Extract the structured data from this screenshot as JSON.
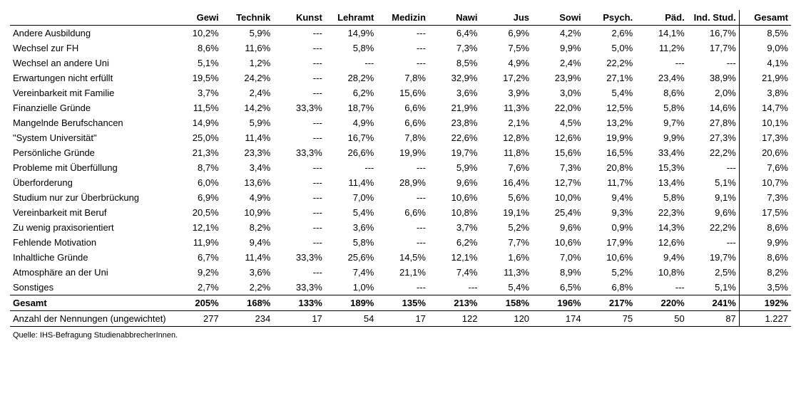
{
  "table": {
    "columns": [
      "Gewi",
      "Technik",
      "Kunst",
      "Lehramt",
      "Medizin",
      "Nawi",
      "Jus",
      "Sowi",
      "Psych.",
      "Päd.",
      "Ind. Stud.",
      "Gesamt"
    ],
    "totalColIndex": 11,
    "rowLabels": [
      "Andere Ausbildung",
      "Wechsel zur FH",
      "Wechsel an andere Uni",
      "Erwartungen nicht erfüllt",
      "Vereinbarkeit mit Familie",
      "Finanzielle Gründe",
      "Mangelnde Berufschancen",
      "\"System Universität\"",
      "Persönliche Gründe",
      "Probleme mit Überfüllung",
      "Überforderung",
      "Studium nur zur Überbrückung",
      "Vereinbarkeit mit Beruf",
      "Zu wenig praxisorientiert",
      "Fehlende Motivation",
      "Inhaltliche Gründe",
      "Atmosphäre an der Uni",
      "Sonstiges"
    ],
    "rows": [
      [
        "10,2%",
        "5,9%",
        "---",
        "14,9%",
        "---",
        "6,4%",
        "6,9%",
        "4,2%",
        "2,6%",
        "14,1%",
        "16,7%",
        "8,5%"
      ],
      [
        "8,6%",
        "11,6%",
        "---",
        "5,8%",
        "---",
        "7,3%",
        "7,5%",
        "9,9%",
        "5,0%",
        "11,2%",
        "17,7%",
        "9,0%"
      ],
      [
        "5,1%",
        "1,2%",
        "---",
        "---",
        "---",
        "8,5%",
        "4,9%",
        "2,4%",
        "22,2%",
        "---",
        "---",
        "4,1%"
      ],
      [
        "19,5%",
        "24,2%",
        "---",
        "28,2%",
        "7,8%",
        "32,9%",
        "17,2%",
        "23,9%",
        "27,1%",
        "23,4%",
        "38,9%",
        "21,9%"
      ],
      [
        "3,7%",
        "2,4%",
        "---",
        "6,2%",
        "15,6%",
        "3,6%",
        "3,9%",
        "3,0%",
        "5,4%",
        "8,6%",
        "2,0%",
        "3,8%"
      ],
      [
        "11,5%",
        "14,2%",
        "33,3%",
        "18,7%",
        "6,6%",
        "21,9%",
        "11,3%",
        "22,0%",
        "12,5%",
        "5,8%",
        "14,6%",
        "14,7%"
      ],
      [
        "14,9%",
        "5,9%",
        "---",
        "4,9%",
        "6,6%",
        "23,8%",
        "2,1%",
        "4,5%",
        "13,2%",
        "9,7%",
        "27,8%",
        "10,1%"
      ],
      [
        "25,0%",
        "11,4%",
        "---",
        "16,7%",
        "7,8%",
        "22,6%",
        "12,8%",
        "12,6%",
        "19,9%",
        "9,9%",
        "27,3%",
        "17,3%"
      ],
      [
        "21,3%",
        "23,3%",
        "33,3%",
        "26,6%",
        "19,9%",
        "19,7%",
        "11,8%",
        "15,6%",
        "16,5%",
        "33,4%",
        "22,2%",
        "20,6%"
      ],
      [
        "8,7%",
        "3,4%",
        "---",
        "---",
        "---",
        "5,9%",
        "7,6%",
        "7,3%",
        "20,8%",
        "15,3%",
        "---",
        "7,6%"
      ],
      [
        "6,0%",
        "13,6%",
        "---",
        "11,4%",
        "28,9%",
        "9,6%",
        "16,4%",
        "12,7%",
        "11,7%",
        "13,4%",
        "5,1%",
        "10,7%"
      ],
      [
        "6,9%",
        "4,9%",
        "---",
        "7,0%",
        "---",
        "10,6%",
        "5,6%",
        "10,0%",
        "9,4%",
        "5,8%",
        "9,1%",
        "7,3%"
      ],
      [
        "20,5%",
        "10,9%",
        "---",
        "5,4%",
        "6,6%",
        "10,8%",
        "19,1%",
        "25,4%",
        "9,3%",
        "22,3%",
        "9,6%",
        "17,5%"
      ],
      [
        "12,1%",
        "8,2%",
        "---",
        "3,6%",
        "---",
        "3,7%",
        "5,2%",
        "9,6%",
        "0,9%",
        "14,3%",
        "22,2%",
        "8,6%"
      ],
      [
        "11,9%",
        "9,4%",
        "---",
        "5,8%",
        "---",
        "6,2%",
        "7,7%",
        "10,6%",
        "17,9%",
        "12,6%",
        "---",
        "9,9%"
      ],
      [
        "6,7%",
        "11,4%",
        "33,3%",
        "25,6%",
        "14,5%",
        "12,1%",
        "1,6%",
        "7,0%",
        "10,6%",
        "9,4%",
        "19,7%",
        "8,6%"
      ],
      [
        "9,2%",
        "3,6%",
        "---",
        "7,4%",
        "21,1%",
        "7,4%",
        "11,3%",
        "8,9%",
        "5,2%",
        "10,8%",
        "2,5%",
        "8,2%"
      ],
      [
        "2,7%",
        "2,2%",
        "33,3%",
        "1,0%",
        "---",
        "---",
        "5,4%",
        "6,5%",
        "6,8%",
        "---",
        "5,1%",
        "3,5%"
      ]
    ],
    "totalRow": {
      "label": "Gesamt",
      "values": [
        "205%",
        "168%",
        "133%",
        "189%",
        "135%",
        "213%",
        "158%",
        "196%",
        "217%",
        "220%",
        "241%",
        "192%"
      ]
    },
    "countRow": {
      "label": "Anzahl der Nennungen (ungewichtet)",
      "values": [
        "277",
        "234",
        "17",
        "54",
        "17",
        "122",
        "120",
        "174",
        "75",
        "50",
        "87",
        "1.227"
      ]
    },
    "source": "Quelle: IHS-Befragung StudienabbrecherInnen."
  }
}
